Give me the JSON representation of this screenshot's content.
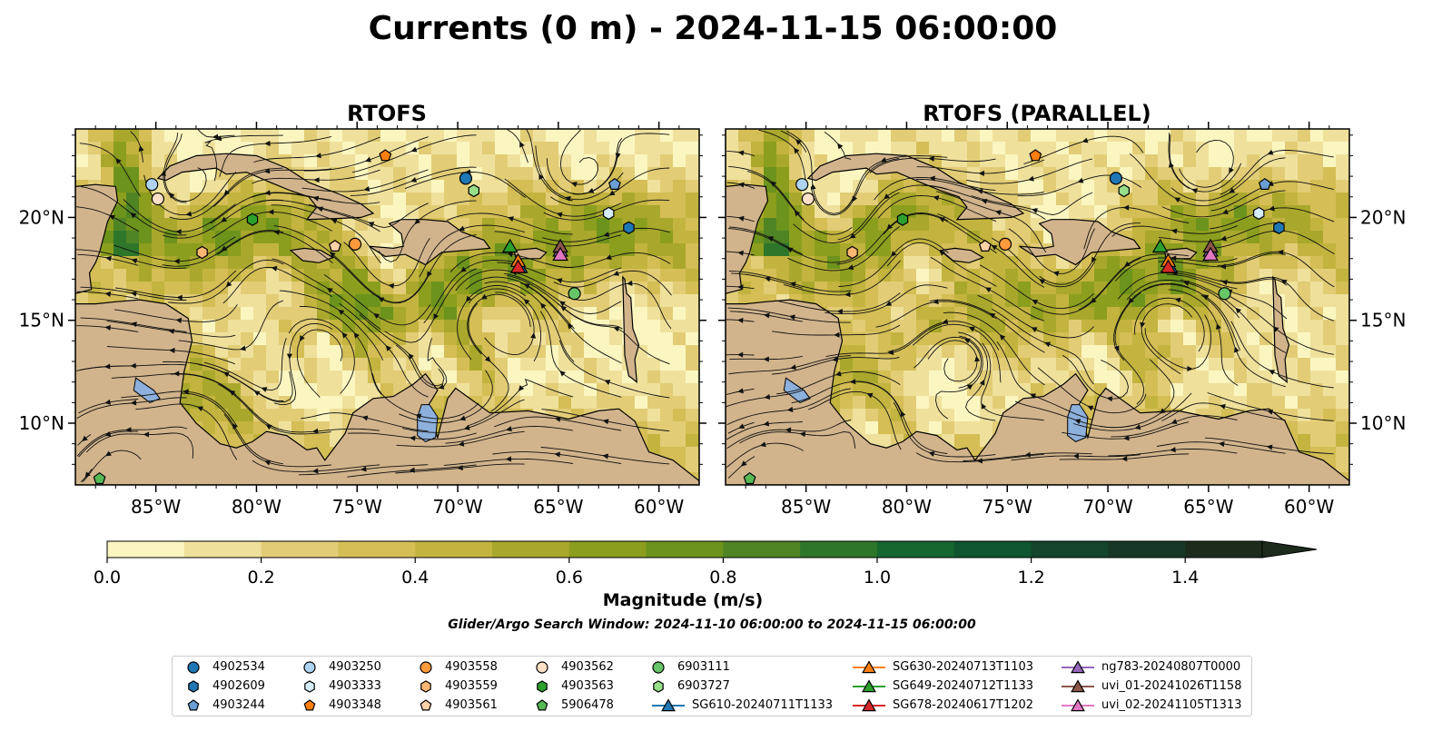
{
  "figure": {
    "title": "Currents (0 m) - 2024-11-15 06:00:00",
    "colorbar_label": "Magnitude (m/s)",
    "search_window": "Glider/Argo Search Window: 2024-11-10 06:00:00 to 2024-11-15 06:00:00"
  },
  "colors": {
    "land": "#d2b48c",
    "lakes": "#8db0dc",
    "colormap": [
      "#fbf6c0",
      "#efe19c",
      "#e2cd76",
      "#d4be55",
      "#c3b43f",
      "#a9a82c",
      "#8c9e1e",
      "#6c931c",
      "#4f8424",
      "#2e762a",
      "#15662f",
      "#0f5530",
      "#12452b",
      "#173826",
      "#1c2b1c"
    ]
  },
  "chart_data": [
    {
      "type": "heatmap",
      "title": "RTOFS",
      "xlabel": "",
      "ylabel": "",
      "xlim": [
        -89,
        -58
      ],
      "ylim": [
        7,
        24.3
      ],
      "xticks": [
        "85°W",
        "80°W",
        "75°W",
        "70°W",
        "65°W",
        "60°W"
      ],
      "xtick_values": [
        -85,
        -80,
        -75,
        -70,
        -65,
        -60
      ],
      "yticks": [
        "10°N",
        "15°N",
        "20°N"
      ],
      "ytick_values": [
        10,
        15,
        20
      ],
      "markers": [
        {
          "id": "4902534",
          "lon": -69.6,
          "lat": 21.9
        },
        {
          "id": "4903250",
          "lon": -85.2,
          "lat": 21.6
        },
        {
          "id": "4903562",
          "lon": -84.9,
          "lat": 20.9
        },
        {
          "id": "6903727",
          "lon": -69.2,
          "lat": 21.3
        },
        {
          "id": "4902609",
          "lon": -61.5,
          "lat": 19.5
        },
        {
          "id": "4903333",
          "lon": -62.5,
          "lat": 20.2
        },
        {
          "id": "4903244",
          "lon": -62.2,
          "lat": 21.6
        },
        {
          "id": "4903348",
          "lon": -73.6,
          "lat": 23.0
        },
        {
          "id": "4903563",
          "lon": -80.2,
          "lat": 19.9
        },
        {
          "id": "4903559",
          "lon": -82.7,
          "lat": 18.3
        },
        {
          "id": "4903561",
          "lon": -76.1,
          "lat": 18.6
        },
        {
          "id": "4903558",
          "lon": -75.1,
          "lat": 18.7
        },
        {
          "id": "6903111",
          "lon": -64.2,
          "lat": 16.3
        },
        {
          "id": "5906478",
          "lon": -87.8,
          "lat": 7.3
        },
        {
          "id": "SG649-20240712T1133",
          "lon": -67.4,
          "lat": 18.6
        },
        {
          "id": "SG610-20240711T1133",
          "lon": -66.9,
          "lat": 17.6
        },
        {
          "id": "SG630-20240713T1103",
          "lon": -67.0,
          "lat": 17.9
        },
        {
          "id": "SG678-20240617T1202",
          "lon": -67.0,
          "lat": 17.6
        },
        {
          "id": "ng783-20240807T0000",
          "lon": -64.9,
          "lat": 18.4
        },
        {
          "id": "uvi_01-20241026T1158",
          "lon": -64.9,
          "lat": 18.6
        },
        {
          "id": "uvi_02-20241105T1313",
          "lon": -64.9,
          "lat": 18.2
        }
      ]
    },
    {
      "type": "heatmap",
      "title": "RTOFS (PARALLEL)",
      "xlabel": "",
      "ylabel": "",
      "xlim": [
        -89,
        -58
      ],
      "ylim": [
        7,
        24.3
      ],
      "xticks": [
        "85°W",
        "80°W",
        "75°W",
        "70°W",
        "65°W",
        "60°W"
      ],
      "xtick_values": [
        -85,
        -80,
        -75,
        -70,
        -65,
        -60
      ],
      "yticks": [
        "10°N",
        "15°N",
        "20°N"
      ],
      "ytick_values": [
        10,
        15,
        20
      ],
      "markers": [
        {
          "id": "4902534",
          "lon": -69.6,
          "lat": 21.9
        },
        {
          "id": "4903250",
          "lon": -85.2,
          "lat": 21.6
        },
        {
          "id": "4903562",
          "lon": -84.9,
          "lat": 20.9
        },
        {
          "id": "6903727",
          "lon": -69.2,
          "lat": 21.3
        },
        {
          "id": "4902609",
          "lon": -61.5,
          "lat": 19.5
        },
        {
          "id": "4903333",
          "lon": -62.5,
          "lat": 20.2
        },
        {
          "id": "4903244",
          "lon": -62.2,
          "lat": 21.6
        },
        {
          "id": "4903348",
          "lon": -73.6,
          "lat": 23.0
        },
        {
          "id": "4903563",
          "lon": -80.2,
          "lat": 19.9
        },
        {
          "id": "4903559",
          "lon": -82.7,
          "lat": 18.3
        },
        {
          "id": "4903561",
          "lon": -76.1,
          "lat": 18.6
        },
        {
          "id": "4903558",
          "lon": -75.1,
          "lat": 18.7
        },
        {
          "id": "6903111",
          "lon": -64.2,
          "lat": 16.3
        },
        {
          "id": "5906478",
          "lon": -87.8,
          "lat": 7.3
        },
        {
          "id": "SG649-20240712T1133",
          "lon": -67.4,
          "lat": 18.6
        },
        {
          "id": "SG610-20240711T1133",
          "lon": -66.9,
          "lat": 17.6
        },
        {
          "id": "SG630-20240713T1103",
          "lon": -67.0,
          "lat": 17.9
        },
        {
          "id": "SG678-20240617T1202",
          "lon": -67.0,
          "lat": 17.6
        },
        {
          "id": "ng783-20240807T0000",
          "lon": -64.9,
          "lat": 18.4
        },
        {
          "id": "uvi_01-20241026T1158",
          "lon": -64.9,
          "lat": 18.6
        },
        {
          "id": "uvi_02-20241105T1313",
          "lon": -64.9,
          "lat": 18.2
        }
      ]
    }
  ],
  "colorbar": {
    "range": [
      0.0,
      1.5
    ],
    "step": 0.1,
    "extend": "max",
    "ticks": [
      "0.0",
      "0.2",
      "0.4",
      "0.6",
      "0.8",
      "1.0",
      "1.2",
      "1.4"
    ],
    "tick_values": [
      0.0,
      0.2,
      0.4,
      0.6,
      0.8,
      1.0,
      1.2,
      1.4
    ]
  },
  "legend": {
    "placement": "bottom-center",
    "entries": [
      {
        "label": "4902534",
        "shape": "circle",
        "color": "#1f77b4"
      },
      {
        "label": "4902609",
        "shape": "hexagon",
        "color": "#1f77b4"
      },
      {
        "label": "4903244",
        "shape": "pentagon",
        "color": "#6a9fd6"
      },
      {
        "label": "4903250",
        "shape": "circle",
        "color": "#aed4f2"
      },
      {
        "label": "4903333",
        "shape": "hexagon",
        "color": "#d6ecfa"
      },
      {
        "label": "4903348",
        "shape": "pentagon",
        "color": "#ff7f0e"
      },
      {
        "label": "4903558",
        "shape": "circle",
        "color": "#ff9a3c"
      },
      {
        "label": "4903559",
        "shape": "hexagon",
        "color": "#ffb873"
      },
      {
        "label": "4903561",
        "shape": "pentagon",
        "color": "#ffd2a6"
      },
      {
        "label": "4903562",
        "shape": "circle",
        "color": "#fde0c5"
      },
      {
        "label": "4903563",
        "shape": "hexagon",
        "color": "#2ca02c"
      },
      {
        "label": "5906478",
        "shape": "pentagon",
        "color": "#55b955"
      },
      {
        "label": "6903111",
        "shape": "circle",
        "color": "#67c467"
      },
      {
        "label": "6903727",
        "shape": "hexagon",
        "color": "#98df8a"
      },
      {
        "label": "SG610-20240711T1133",
        "shape": "triangle",
        "color": "#1f77b4"
      },
      {
        "label": "SG630-20240713T1103",
        "shape": "triangle",
        "color": "#ff7f0e"
      },
      {
        "label": "SG649-20240712T1133",
        "shape": "triangle",
        "color": "#2ca02c"
      },
      {
        "label": "SG678-20240617T1202",
        "shape": "triangle",
        "color": "#d62728"
      },
      {
        "label": "ng783-20240807T0000",
        "shape": "triangle",
        "color": "#9467bd"
      },
      {
        "label": "uvi_01-20241026T1158",
        "shape": "triangle",
        "color": "#8c564b"
      },
      {
        "label": "uvi_02-20241105T1313",
        "shape": "triangle",
        "color": "#e377c2"
      }
    ]
  }
}
